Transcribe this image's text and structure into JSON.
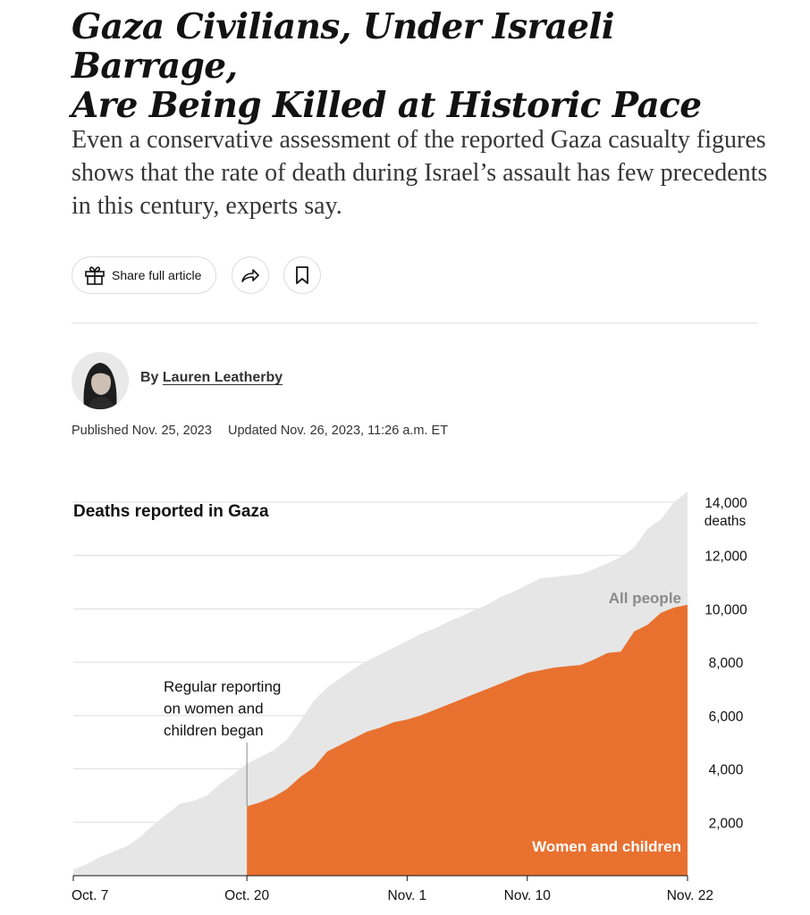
{
  "article": {
    "headline_line1": "Gaza Civilians, Under Israeli Barrage,",
    "headline_line2": "Are Being Killed at Historic Pace",
    "summary": "Even a conservative assessment of the reported Gaza casualty figures shows that the rate of death during Israel’s assault has few precedents in this century, experts say.",
    "share_label": "Share full article",
    "byline_prefix": "By",
    "author": "Lauren Leatherby",
    "published": "Published Nov. 25, 2023",
    "updated": "Updated Nov. 26, 2023, 11:26 a.m. ET"
  },
  "icons": {
    "share": "gift-icon",
    "forward": "forward-arrow-icon",
    "save": "bookmark-icon"
  },
  "colors": {
    "all_people": "#e6e6e6",
    "women_children": "#e87130",
    "all_people_label": "#8a8a8a",
    "women_children_label": "#ffffff"
  },
  "chart_data": {
    "type": "area",
    "title": "Deaths reported in Gaza",
    "y_unit_label": "deaths",
    "ylim": [
      0,
      14400
    ],
    "y_ticks": [
      2000,
      4000,
      6000,
      8000,
      10000,
      12000,
      14000
    ],
    "y_tick_labels": [
      "2,000",
      "4,000",
      "6,000",
      "8,000",
      "10,000",
      "12,000",
      "14,000"
    ],
    "x_ticks": [
      0,
      13,
      25,
      34,
      46
    ],
    "x_tick_labels": [
      "Oct. 7",
      "Oct. 20",
      "Nov. 1",
      "Nov. 10",
      "Nov. 22"
    ],
    "xlim": [
      0,
      46
    ],
    "x_unit": "days since Oct. 7",
    "annotation": {
      "x": 13,
      "lines": [
        "Regular reporting",
        "on women and",
        "children began"
      ]
    },
    "series": [
      {
        "name": "All people",
        "x": [
          0,
          1,
          2,
          3,
          4,
          5,
          6,
          7,
          8,
          9,
          10,
          11,
          12,
          13,
          14,
          15,
          16,
          17,
          18,
          19,
          20,
          21,
          22,
          23,
          24,
          25,
          26,
          27,
          28,
          29,
          30,
          31,
          32,
          33,
          34,
          35,
          36,
          37,
          38,
          39,
          40,
          41,
          42,
          43,
          44,
          45,
          46
        ],
        "values": [
          230,
          430,
          700,
          900,
          1100,
          1450,
          1900,
          2300,
          2700,
          2800,
          3000,
          3450,
          3800,
          4200,
          4450,
          4700,
          5100,
          5800,
          6550,
          7050,
          7400,
          7750,
          8050,
          8300,
          8550,
          8800,
          9050,
          9250,
          9500,
          9700,
          9950,
          10150,
          10450,
          10650,
          10900,
          11150,
          11200,
          11250,
          11300,
          11500,
          11700,
          11950,
          12300,
          13000,
          13350,
          14000,
          14400
        ]
      },
      {
        "name": "Women and children",
        "x": [
          13,
          14,
          15,
          16,
          17,
          18,
          19,
          20,
          21,
          22,
          23,
          24,
          25,
          26,
          27,
          28,
          29,
          30,
          31,
          32,
          33,
          34,
          35,
          36,
          37,
          38,
          39,
          40,
          41,
          42,
          43,
          44,
          45,
          46
        ],
        "values": [
          2600,
          2750,
          2950,
          3250,
          3700,
          4050,
          4650,
          4900,
          5150,
          5400,
          5550,
          5750,
          5850,
          6000,
          6200,
          6400,
          6600,
          6800,
          7000,
          7200,
          7400,
          7600,
          7700,
          7800,
          7850,
          7900,
          8100,
          8350,
          8400,
          9150,
          9400,
          9850,
          10050,
          10150
        ]
      }
    ]
  }
}
